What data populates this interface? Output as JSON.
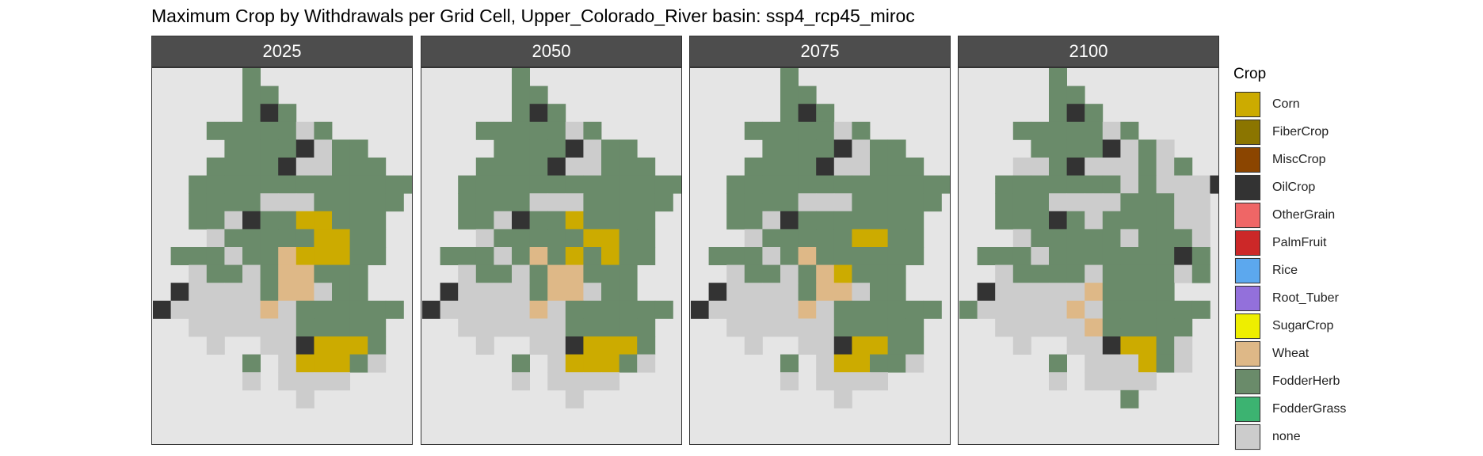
{
  "title": "Maximum Crop by Withdrawals per Grid Cell, Upper_Colorado_River basin: ssp4_rcp45_miroc",
  "legend": {
    "title": "Crop",
    "items": [
      {
        "label": "Corn",
        "color": "#ccab00"
      },
      {
        "label": "FiberCrop",
        "color": "#8b7500"
      },
      {
        "label": "MiscCrop",
        "color": "#8b4500"
      },
      {
        "label": "OilCrop",
        "color": "#333333"
      },
      {
        "label": "OtherGrain",
        "color": "#ef6666"
      },
      {
        "label": "PalmFruit",
        "color": "#cc2828"
      },
      {
        "label": "Rice",
        "color": "#5ca8ee"
      },
      {
        "label": "Root_Tuber",
        "color": "#9370db"
      },
      {
        "label": "SugarCrop",
        "color": "#eeee00"
      },
      {
        "label": "Wheat",
        "color": "#deb887"
      },
      {
        "label": "FodderHerb",
        "color": "#6a8b6a"
      },
      {
        "label": "FodderGrass",
        "color": "#3cb371"
      },
      {
        "label": "none",
        "color": "#cccccc"
      }
    ]
  },
  "chart_data": {
    "type": "heatmap",
    "title": "Maximum Crop by Withdrawals per Grid Cell, Upper_Colorado_River basin: ssp4_rcp45_miroc",
    "xlabel": "",
    "ylabel": "",
    "panel_background": "#e5e5e5",
    "legend_title": "Crop",
    "legend_position": "right",
    "grid": false,
    "codes": {
      "F": "FodderHerb",
      "O": "OilCrop",
      "C": "Corn",
      "W": "Wheat",
      "N": "none"
    },
    "panels": [
      {
        "label": "2025",
        "rows": [
          ".....F.........",
          ".....FF........",
          ".....FOF.......",
          "...FFFFFNF.....",
          "....FFFFONFF...",
          "...FFFFONNFFF..",
          "..FFFFFFFFFFFFF",
          "..FFFFNNNFFFFF.",
          "..FFNOFFCCFFF..",
          "...NFFFFFCCFF..",
          ".FFFNFFWCCCFF..",
          "..NFFNFWWFFF...",
          ".ONNNNFWWNFF...",
          "ONNNNNWNFFFFFF.",
          "..NNNNNNFFFFF..",
          "...N..NNOCCCF..",
          ".....F.NCCCFN..",
          ".....N.NNNN....",
          "........N......"
        ]
      },
      {
        "label": "2050",
        "rows": [
          ".....F.........",
          ".....FF........",
          ".....FOF.......",
          "...FFFFFNF.....",
          "....FFFFONFF...",
          "...FFFFONNFFF..",
          "..FFFFFFFFFFFFF",
          "..FFFFNNNFFFFF.",
          "..FFNOFFCFFFF..",
          "...NFFFFFCCFF..",
          ".FFFNFWFCFCFF..",
          "..NFFNFWWFFF...",
          ".ONNNNFWWNFF...",
          "ONNNNNWNFFFFFF.",
          "..NNNNNNFFFFF..",
          "...N..NNOCCCF..",
          ".....F.NCCCFN..",
          ".....N.NNNN....",
          "........N......"
        ]
      },
      {
        "label": "2075",
        "rows": [
          ".....F.........",
          ".....FF........",
          ".....FOF.......",
          "...FFFFFNF.....",
          "....FFFFONFF...",
          "...FFFFONNFFF..",
          "..FFFFFFFFFFFFF",
          "..FFFFNNNFFFFF.",
          "..FFNOFFFFFFF..",
          "...NFFFFFCCFF..",
          ".FFFNFWFFFFFF..",
          "..NFFNFWCFFF...",
          ".ONNNNFWWNFF...",
          "ONNNNNWNFFFFFF.",
          "..NNNNNNFFFFF..",
          "...N..NNOCCFF..",
          ".....F.NCCFFN..",
          ".....N.NNNN....",
          "........N......"
        ]
      },
      {
        "label": "2100",
        "rows": [
          ".....F.........",
          ".....FF........",
          ".....FOF.......",
          "...FFFFFNF.....",
          "....FFFFONFN...",
          "...NNFONNNFNF..",
          "..FFFFFFFNFNNNO",
          "..FFFNNNNFFFNN.",
          "..FFFOFNFFFFNN.",
          "...NFFFFFNFFFN.",
          ".FFFNFFFFFFFOF.",
          "..NFFFFNFFFFNF.",
          ".ONNNNNWFFFF...",
          "FNNNNNWNFFFFFF.",
          "..NNNNNWFFFFF..",
          "...N..NNOCCFN..",
          ".....F.NNNCFN..",
          ".....N.NNNN....",
          ".........F....."
        ]
      }
    ]
  }
}
